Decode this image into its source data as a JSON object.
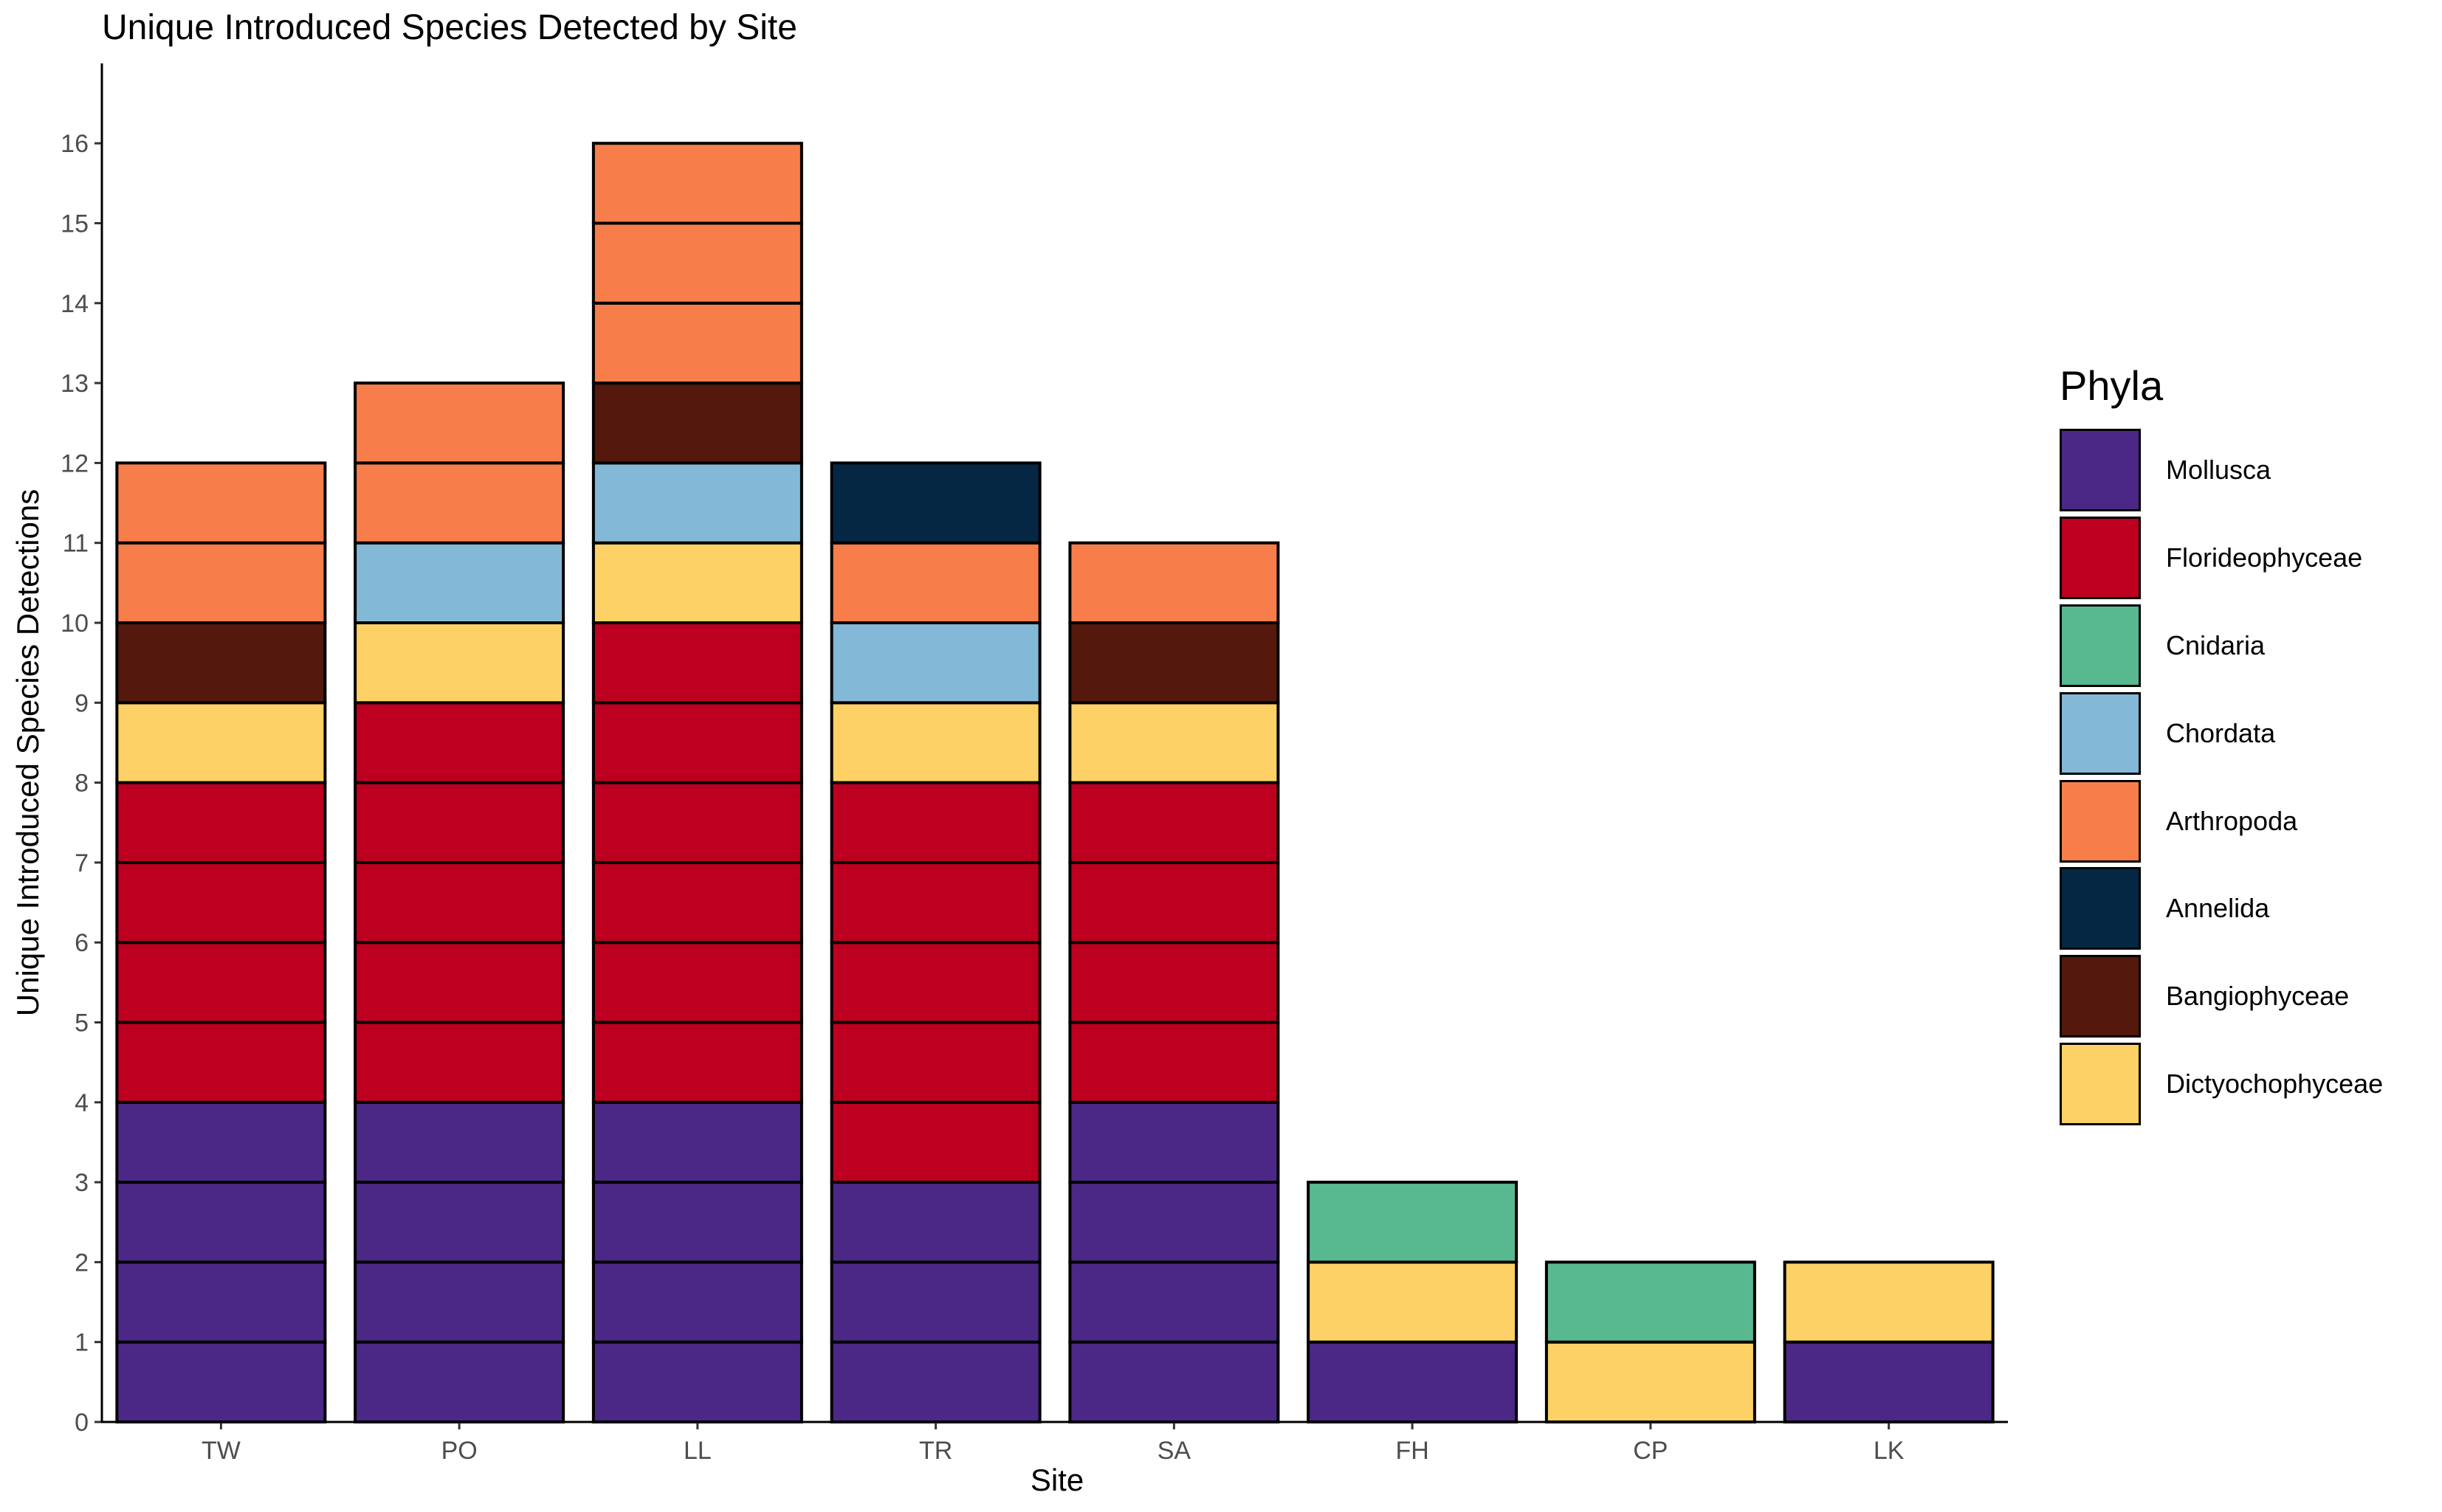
{
  "chart_data": {
    "type": "bar",
    "stacked": true,
    "title": "Unique Introduced Species Detected by Site",
    "xlabel": "Site",
    "ylabel": "Unique Introduced Species Detections",
    "ylim": [
      0,
      17
    ],
    "yticks": [
      0,
      1,
      2,
      3,
      4,
      5,
      6,
      7,
      8,
      9,
      10,
      11,
      12,
      13,
      14,
      15,
      16
    ],
    "grid": false,
    "legend_title": "Phyla",
    "legend_position": "right",
    "categories": [
      "TW",
      "PO",
      "LL",
      "TR",
      "SA",
      "FH",
      "CP",
      "LK"
    ],
    "series": [
      {
        "name": "Mollusca",
        "color": "#4B2885",
        "values": [
          4,
          4,
          4,
          3,
          4,
          1,
          0,
          1
        ]
      },
      {
        "name": "Florideophyceae",
        "color": "#BD0020",
        "values": [
          4,
          5,
          6,
          5,
          4,
          0,
          0,
          0
        ]
      },
      {
        "name": "Cnidaria",
        "color": "#58B991",
        "values": [
          0,
          0,
          0,
          0,
          0,
          1,
          1,
          0
        ]
      },
      {
        "name": "Chordata",
        "color": "#83B8D7",
        "values": [
          0,
          1,
          1,
          1,
          0,
          0,
          0,
          0
        ]
      },
      {
        "name": "Arthropoda",
        "color": "#F77E4B",
        "values": [
          2,
          2,
          3,
          1,
          1,
          0,
          0,
          0
        ]
      },
      {
        "name": "Annelida",
        "color": "#062744",
        "values": [
          0,
          0,
          0,
          1,
          0,
          0,
          0,
          0
        ]
      },
      {
        "name": "Bangiophyceae",
        "color": "#54190C",
        "values": [
          1,
          0,
          1,
          0,
          1,
          0,
          0,
          0
        ]
      },
      {
        "name": "Dictyochophyceae",
        "color": "#FDD165",
        "values": [
          1,
          1,
          1,
          1,
          1,
          1,
          1,
          1
        ]
      }
    ],
    "stack_order": [
      [
        "Mollusca",
        "Florideophyceae",
        "Dictyochophyceae",
        "Bangiophyceae",
        "Arthropoda"
      ],
      [
        "Mollusca",
        "Florideophyceae",
        "Dictyochophyceae",
        "Chordata",
        "Arthropoda"
      ],
      [
        "Mollusca",
        "Florideophyceae",
        "Dictyochophyceae",
        "Chordata",
        "Bangiophyceae",
        "Arthropoda"
      ],
      [
        "Mollusca",
        "Florideophyceae",
        "Dictyochophyceae",
        "Chordata",
        "Arthropoda",
        "Annelida"
      ],
      [
        "Mollusca",
        "Florideophyceae",
        "Dictyochophyceae",
        "Bangiophyceae",
        "Arthropoda"
      ],
      [
        "Mollusca",
        "Dictyochophyceae",
        "Cnidaria"
      ],
      [
        "Dictyochophyceae",
        "Cnidaria"
      ],
      [
        "Mollusca",
        "Dictyochophyceae"
      ]
    ]
  }
}
